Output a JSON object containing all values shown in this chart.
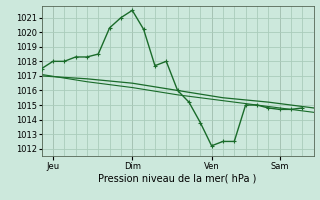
{
  "background_color": "#cce8dc",
  "grid_color": "#aaccbb",
  "line_color": "#1a6b2a",
  "marker_color": "#1a6b2a",
  "xlabel": "Pression niveau de la mer( hPa )",
  "ylim": [
    1011.5,
    1021.8
  ],
  "yticks": [
    1012,
    1013,
    1014,
    1015,
    1016,
    1017,
    1018,
    1019,
    1020,
    1021
  ],
  "xtick_labels": [
    "Jeu",
    "Dim",
    "Ven",
    "Sam"
  ],
  "xtick_positions": [
    0.5,
    4,
    7.5,
    10.5
  ],
  "xlim": [
    0,
    12
  ],
  "line1_x": [
    0.0,
    0.5,
    1.0,
    1.5,
    2.0,
    2.5,
    3.0,
    3.5,
    4.0,
    4.5,
    5.0,
    5.5,
    6.0,
    6.5,
    7.0,
    7.5,
    8.0,
    8.5,
    9.0,
    9.5,
    10.0,
    10.5,
    11.0,
    11.5
  ],
  "line1_y": [
    1017.5,
    1018.0,
    1018.0,
    1018.3,
    1018.3,
    1018.5,
    1020.3,
    1021.0,
    1021.5,
    1020.2,
    1017.7,
    1018.0,
    1016.0,
    1015.2,
    1013.8,
    1012.2,
    1012.5,
    1012.5,
    1015.0,
    1015.0,
    1014.8,
    1014.7,
    1014.7,
    1014.8
  ],
  "line2_x": [
    0.0,
    2.0,
    4.0,
    6.0,
    8.0,
    10.0,
    12.0
  ],
  "line2_y": [
    1017.0,
    1016.8,
    1016.5,
    1016.0,
    1015.5,
    1015.2,
    1014.8
  ],
  "line3_x": [
    0.0,
    2.0,
    4.0,
    6.0,
    8.0,
    10.0,
    12.0
  ],
  "line3_y": [
    1017.1,
    1016.6,
    1016.2,
    1015.7,
    1015.3,
    1014.9,
    1014.5
  ],
  "vlines_x": [
    0.5,
    4.0,
    7.5,
    10.5
  ]
}
